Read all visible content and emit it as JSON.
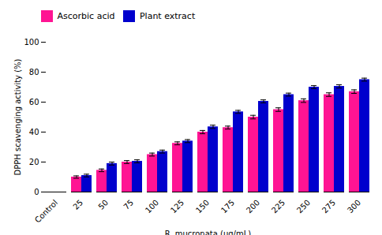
{
  "chart_data": {
    "type": "bar",
    "categories": [
      "Control",
      "25",
      "50",
      "75",
      "100",
      "125",
      "150",
      "175",
      "200",
      "225",
      "250",
      "275",
      "300"
    ],
    "series": [
      {
        "name": "Ascorbic acid",
        "color": "#FF1493",
        "values": [
          0,
          10,
          14.5,
          20,
          25,
          32.5,
          40,
          43,
          50,
          55,
          61,
          65,
          67
        ],
        "errors": [
          0,
          0.8,
          0.9,
          1.0,
          1.0,
          1.0,
          1.1,
          1.0,
          1.2,
          1.2,
          1.2,
          1.2,
          1.2
        ]
      },
      {
        "name": "Plant extract",
        "color": "#0000CD",
        "values": [
          0,
          11,
          19,
          20.5,
          27,
          34,
          43.5,
          53.5,
          60.5,
          65,
          70,
          70.5,
          75
        ],
        "errors": [
          0,
          0.9,
          1.0,
          1.0,
          1.0,
          1.0,
          1.1,
          1.0,
          1.0,
          1.0,
          1.0,
          1.1,
          1.0
        ]
      }
    ],
    "xlabel": "R. mucronata (μg/mL)",
    "ylabel": "DPPH scavenging activity (%)",
    "ylim": [
      0,
      100
    ],
    "yticks": [
      0,
      20,
      40,
      60,
      80,
      100
    ],
    "grid": false,
    "legend": "upper left"
  }
}
